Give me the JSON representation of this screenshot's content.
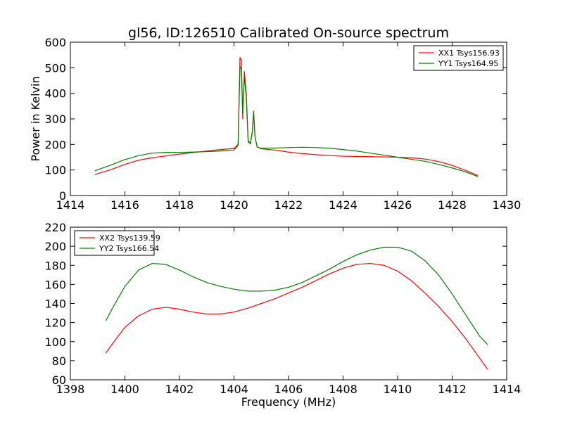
{
  "title": "gl56, ID:126510 Calibrated On-source spectrum",
  "chart_data": [
    {
      "type": "line",
      "ylabel": "Power in Kelvin",
      "xlabel": "",
      "xlim": [
        1414,
        1430
      ],
      "ylim": [
        0,
        600
      ],
      "xticks": [
        1414,
        1416,
        1418,
        1420,
        1422,
        1424,
        1426,
        1428,
        1430
      ],
      "yticks": [
        0,
        100,
        200,
        300,
        400,
        500,
        600
      ],
      "legend_position": "top-right",
      "grid": false,
      "series": [
        {
          "name": "XX1 Tsys156.93",
          "color": "#ff0000",
          "points": [
            [
              1414.9,
              82
            ],
            [
              1415.5,
              102
            ],
            [
              1416,
              122
            ],
            [
              1416.5,
              138
            ],
            [
              1417,
              148
            ],
            [
              1417.5,
              155
            ],
            [
              1418,
              162
            ],
            [
              1418.5,
              168
            ],
            [
              1419,
              174
            ],
            [
              1419.5,
              180
            ],
            [
              1420,
              184
            ],
            [
              1420.15,
              200
            ],
            [
              1420.22,
              540
            ],
            [
              1420.27,
              530
            ],
            [
              1420.32,
              300
            ],
            [
              1420.38,
              485
            ],
            [
              1420.45,
              400
            ],
            [
              1420.52,
              215
            ],
            [
              1420.6,
              205
            ],
            [
              1420.67,
              250
            ],
            [
              1420.72,
              330
            ],
            [
              1420.77,
              230
            ],
            [
              1420.85,
              190
            ],
            [
              1421,
              183
            ],
            [
              1421.5,
              178
            ],
            [
              1422,
              170
            ],
            [
              1422.5,
              164
            ],
            [
              1423,
              160
            ],
            [
              1423.5,
              156
            ],
            [
              1424,
              154
            ],
            [
              1424.5,
              153
            ],
            [
              1425,
              152
            ],
            [
              1425.5,
              151
            ],
            [
              1426,
              150
            ],
            [
              1426.5,
              148
            ],
            [
              1427,
              143
            ],
            [
              1427.5,
              133
            ],
            [
              1428,
              118
            ],
            [
              1428.5,
              98
            ],
            [
              1428.95,
              78
            ]
          ]
        },
        {
          "name": "YY1 Tsys164.95",
          "color": "#008000",
          "points": [
            [
              1414.9,
              97
            ],
            [
              1415.5,
              120
            ],
            [
              1416,
              141
            ],
            [
              1416.5,
              156
            ],
            [
              1417,
              166
            ],
            [
              1417.5,
              169
            ],
            [
              1418,
              169
            ],
            [
              1418.5,
              170
            ],
            [
              1419,
              172
            ],
            [
              1419.5,
              174
            ],
            [
              1420,
              178
            ],
            [
              1420.15,
              196
            ],
            [
              1420.22,
              505
            ],
            [
              1420.27,
              495
            ],
            [
              1420.32,
              320
            ],
            [
              1420.38,
              465
            ],
            [
              1420.45,
              385
            ],
            [
              1420.52,
              210
            ],
            [
              1420.6,
              202
            ],
            [
              1420.67,
              245
            ],
            [
              1420.72,
              325
            ],
            [
              1420.77,
              228
            ],
            [
              1420.85,
              190
            ],
            [
              1421,
              185
            ],
            [
              1421.5,
              186
            ],
            [
              1422,
              188
            ],
            [
              1422.5,
              189
            ],
            [
              1423,
              188
            ],
            [
              1423.5,
              185
            ],
            [
              1424,
              180
            ],
            [
              1424.5,
              174
            ],
            [
              1425,
              166
            ],
            [
              1425.5,
              158
            ],
            [
              1426,
              150
            ],
            [
              1426.5,
              142
            ],
            [
              1427,
              134
            ],
            [
              1427.5,
              122
            ],
            [
              1428,
              108
            ],
            [
              1428.5,
              92
            ],
            [
              1428.95,
              74
            ]
          ]
        }
      ]
    },
    {
      "type": "line",
      "ylabel": "",
      "xlabel": "Frequency (MHz)",
      "xlim": [
        1398,
        1414
      ],
      "ylim": [
        60,
        220
      ],
      "xticks": [
        1398,
        1400,
        1402,
        1404,
        1406,
        1408,
        1410,
        1412,
        1414
      ],
      "yticks": [
        60,
        80,
        100,
        120,
        140,
        160,
        180,
        200,
        220
      ],
      "legend_position": "top-left",
      "grid": false,
      "series": [
        {
          "name": "XX2 Tsys139.59",
          "color": "#ff0000",
          "points": [
            [
              1399.3,
              88
            ],
            [
              1399.6,
              100
            ],
            [
              1400,
              115
            ],
            [
              1400.5,
              127
            ],
            [
              1401,
              134
            ],
            [
              1401.5,
              136
            ],
            [
              1402,
              134
            ],
            [
              1402.5,
              131
            ],
            [
              1403,
              129
            ],
            [
              1403.5,
              129
            ],
            [
              1404,
              131
            ],
            [
              1404.5,
              135
            ],
            [
              1405,
              140
            ],
            [
              1405.5,
              145
            ],
            [
              1406,
              151
            ],
            [
              1406.5,
              157
            ],
            [
              1407,
              164
            ],
            [
              1407.5,
              171
            ],
            [
              1408,
              177
            ],
            [
              1408.5,
              181
            ],
            [
              1409,
              182
            ],
            [
              1409.5,
              180
            ],
            [
              1410,
              174
            ],
            [
              1410.5,
              164
            ],
            [
              1411,
              151
            ],
            [
              1411.5,
              137
            ],
            [
              1412,
              121
            ],
            [
              1412.5,
              103
            ],
            [
              1413,
              83
            ],
            [
              1413.3,
              71
            ]
          ]
        },
        {
          "name": "YY2 Tsys166.54",
          "color": "#008000",
          "points": [
            [
              1399.3,
              122
            ],
            [
              1399.6,
              138
            ],
            [
              1400,
              158
            ],
            [
              1400.5,
              175
            ],
            [
              1401,
              182
            ],
            [
              1401.5,
              181
            ],
            [
              1402,
              175
            ],
            [
              1402.5,
              168
            ],
            [
              1403,
              162
            ],
            [
              1403.5,
              158
            ],
            [
              1404,
              155
            ],
            [
              1404.5,
              153
            ],
            [
              1405,
              153
            ],
            [
              1405.5,
              154
            ],
            [
              1406,
              157
            ],
            [
              1406.5,
              162
            ],
            [
              1407,
              169
            ],
            [
              1407.5,
              176
            ],
            [
              1408,
              184
            ],
            [
              1408.5,
              191
            ],
            [
              1409,
              196
            ],
            [
              1409.5,
              199
            ],
            [
              1410,
              199
            ],
            [
              1410.5,
              195
            ],
            [
              1411,
              185
            ],
            [
              1411.5,
              170
            ],
            [
              1412,
              150
            ],
            [
              1412.5,
              128
            ],
            [
              1413,
              106
            ],
            [
              1413.3,
              97
            ]
          ]
        }
      ]
    }
  ]
}
